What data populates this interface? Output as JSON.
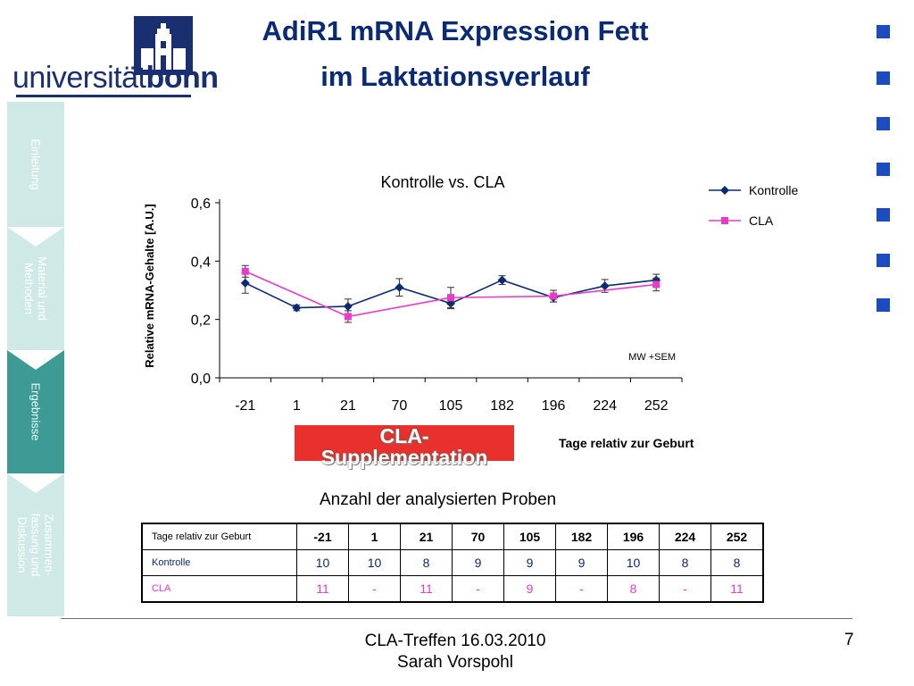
{
  "logo": {
    "text_light": "universität",
    "text_bold": "bonn"
  },
  "title": {
    "line1": "AdiR1 mRNA Expression Fett",
    "line2": "im Laktationsverlauf"
  },
  "sidebar": {
    "tabs": [
      {
        "label": "Einleitung",
        "active": false
      },
      {
        "label": "Material und Methoden",
        "active": false
      },
      {
        "label": "Ergebnisse",
        "active": true
      },
      {
        "label": "Zusammen-fassung und Diskussion",
        "active": false
      }
    ]
  },
  "chart_data": {
    "type": "line",
    "title": "Kontrolle vs. CLA",
    "xlabel": "Tage relativ zur Geburt",
    "ylabel": "Relative mRNA-Gehalte [A.U.]",
    "categories": [
      "-21",
      "1",
      "21",
      "70",
      "105",
      "182",
      "196",
      "224",
      "252"
    ],
    "ylim": [
      0,
      0.6
    ],
    "yticks": [
      "0,0",
      "0,2",
      "0,4",
      "0,6"
    ],
    "legend_position": "right",
    "annotation": "MW +SEM",
    "series": [
      {
        "name": "Kontrolle",
        "color": "#0b2a74",
        "marker": "diamond",
        "values": [
          0.325,
          0.24,
          0.245,
          0.31,
          0.255,
          0.335,
          0.275,
          0.315,
          0.335
        ],
        "errors": [
          0.035,
          0.01,
          0.025,
          0.03,
          0.018,
          0.015,
          0.015,
          0.022,
          0.02
        ]
      },
      {
        "name": "CLA",
        "color": "#e83cc8",
        "marker": "square",
        "values": [
          0.365,
          null,
          0.21,
          null,
          0.275,
          null,
          0.28,
          null,
          0.32
        ],
        "errors": [
          0.02,
          null,
          0.02,
          null,
          0.035,
          null,
          0.02,
          null,
          0.022
        ]
      }
    ]
  },
  "banner": {
    "line1": "CLA-",
    "line2": "Supplementation"
  },
  "samples": {
    "caption": "Anzahl der analysierten Proben",
    "header": [
      "Tage relativ zur Geburt",
      "-21",
      "1",
      "21",
      "70",
      "105",
      "182",
      "196",
      "224",
      "252"
    ],
    "kontrolle": [
      "Kontrolle",
      "10",
      "10",
      "8",
      "9",
      "9",
      "9",
      "10",
      "8",
      "8"
    ],
    "cla": [
      "CLA",
      "11",
      "-",
      "11",
      "-",
      "9",
      "-",
      "8",
      "-",
      "11"
    ]
  },
  "footer": {
    "line1": "CLA-Treffen 16.03.2010",
    "line2": "Sarah Vorspohl",
    "page": "7"
  },
  "colors": {
    "title": "#0b2a74",
    "deco_square": "#1d4bc0",
    "sidebar_light": "#cfe9e7",
    "sidebar_active": "#3d9a95",
    "banner": "#e8302c"
  }
}
